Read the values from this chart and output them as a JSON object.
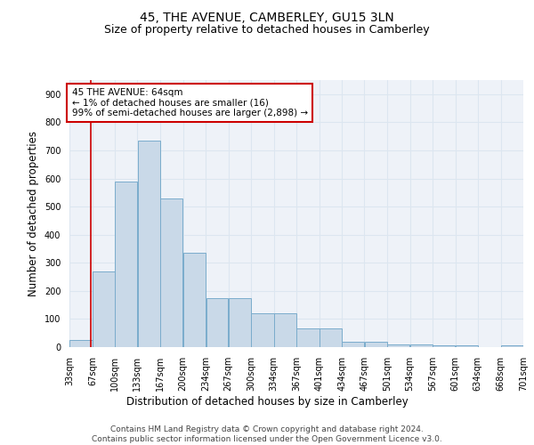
{
  "title": "45, THE AVENUE, CAMBERLEY, GU15 3LN",
  "subtitle": "Size of property relative to detached houses in Camberley",
  "xlabel": "Distribution of detached houses by size in Camberley",
  "ylabel": "Number of detached properties",
  "footer1": "Contains HM Land Registry data © Crown copyright and database right 2024.",
  "footer2": "Contains public sector information licensed under the Open Government Licence v3.0.",
  "annotation_line1": "45 THE AVENUE: 64sqm",
  "annotation_line2": "← 1% of detached houses are smaller (16)",
  "annotation_line3": "99% of semi-detached houses are larger (2,898) →",
  "bar_edges": [
    33,
    67,
    100,
    133,
    167,
    200,
    234,
    267,
    300,
    334,
    367,
    401,
    434,
    467,
    501,
    534,
    567,
    601,
    634,
    668,
    701
  ],
  "bar_heights": [
    25,
    270,
    590,
    735,
    530,
    335,
    175,
    175,
    120,
    120,
    65,
    65,
    20,
    20,
    10,
    8,
    5,
    5,
    0,
    5
  ],
  "bar_color": "#c9d9e8",
  "bar_edge_color": "#7aaccc",
  "grid_color": "#dce6f0",
  "property_line_x": 64,
  "property_line_color": "#cc0000",
  "annotation_box_color": "#cc0000",
  "ylim": [
    0,
    950
  ],
  "yticks": [
    0,
    100,
    200,
    300,
    400,
    500,
    600,
    700,
    800,
    900
  ],
  "bg_color": "#eef2f8",
  "title_fontsize": 10,
  "subtitle_fontsize": 9,
  "axis_label_fontsize": 8.5,
  "tick_fontsize": 7,
  "annotation_fontsize": 7.5,
  "footer_fontsize": 6.5
}
